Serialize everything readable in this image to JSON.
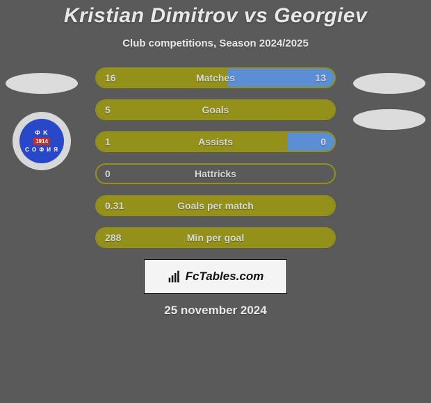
{
  "title": "Kristian Dimitrov vs Georgiev",
  "subtitle": "Club competitions, Season 2024/2025",
  "date": "25 november 2024",
  "colors": {
    "olive": "#93911a",
    "blue": "#5a8fd6",
    "background": "#5a5a5a",
    "text": "#e8e8e8",
    "badge_bg": "#f4f4f4"
  },
  "crest": {
    "top_text": "Φ K",
    "year": "1914",
    "bottom_text": "C O Φ И Я",
    "ring_color": "#d8d8d8",
    "inner_color": "#2848c8"
  },
  "fctables_label": "FcTables.com",
  "stats": [
    {
      "label": "Matches",
      "left_val": "16",
      "right_val": "13",
      "left_pct": 55,
      "right_pct": 45,
      "left_color": "#93911a",
      "right_color": "#5a8fd6",
      "border_color": "#93911a"
    },
    {
      "label": "Goals",
      "left_val": "5",
      "right_val": "",
      "left_pct": 100,
      "right_pct": 0,
      "left_color": "#93911a",
      "right_color": "#5a8fd6",
      "border_color": "#93911a"
    },
    {
      "label": "Assists",
      "left_val": "1",
      "right_val": "0",
      "left_pct": 80,
      "right_pct": 20,
      "left_color": "#93911a",
      "right_color": "#5a8fd6",
      "border_color": "#93911a"
    },
    {
      "label": "Hattricks",
      "left_val": "0",
      "right_val": "",
      "left_pct": 0,
      "right_pct": 0,
      "left_color": "#93911a",
      "right_color": "#5a8fd6",
      "border_color": "#93911a"
    },
    {
      "label": "Goals per match",
      "left_val": "0.31",
      "right_val": "",
      "left_pct": 100,
      "right_pct": 0,
      "left_color": "#93911a",
      "right_color": "#5a8fd6",
      "border_color": "#93911a"
    },
    {
      "label": "Min per goal",
      "left_val": "288",
      "right_val": "",
      "left_pct": 100,
      "right_pct": 0,
      "left_color": "#93911a",
      "right_color": "#5a8fd6",
      "border_color": "#93911a"
    }
  ]
}
